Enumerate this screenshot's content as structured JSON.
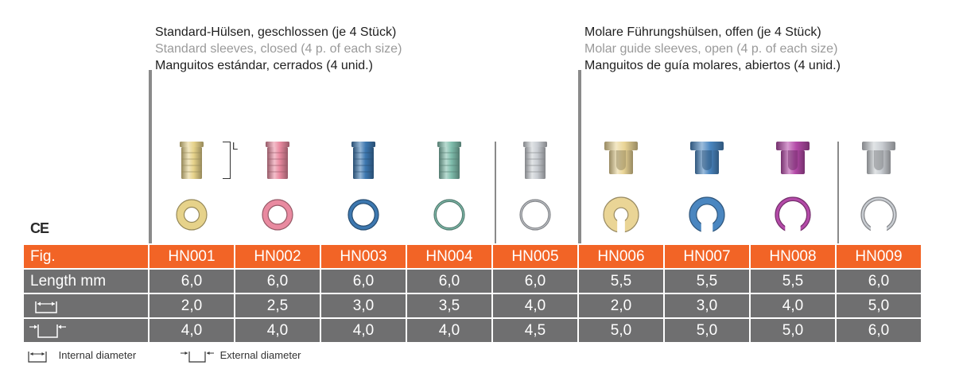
{
  "header_left": {
    "de": "Standard-Hülsen, geschlossen (je 4 Stück)",
    "en": "Standard sleeves, closed (4 p. of each size)",
    "es": "Manguitos estándar, cerrados (4 unid.)"
  },
  "header_right": {
    "de": "Molare Führungshülsen, offen (je 4 Stück)",
    "en": "Molar guide sleeves, open (4 p. of each size)",
    "es": "Manguitos de guía molares, abiertos (4 unid.)"
  },
  "ce_mark": "CE",
  "length_marker": "L",
  "table": {
    "row_labels": {
      "fig": "Fig.",
      "length": "Length mm",
      "internal": "",
      "external": ""
    },
    "columns": [
      {
        "code": "HN001",
        "length": "6,0",
        "internal": "2,0",
        "external": "4,0",
        "color": "#e6d28a",
        "type": "closed"
      },
      {
        "code": "HN002",
        "length": "6,0",
        "internal": "2,5",
        "external": "4,0",
        "color": "#e98aa0",
        "type": "closed"
      },
      {
        "code": "HN003",
        "length": "6,0",
        "internal": "3,0",
        "external": "4,0",
        "color": "#3d78b0",
        "type": "closed"
      },
      {
        "code": "HN004",
        "length": "6,0",
        "internal": "3,5",
        "external": "4,0",
        "color": "#7fbdac",
        "type": "closed"
      },
      {
        "code": "HN005",
        "length": "6,0",
        "internal": "4,0",
        "external": "4,5",
        "color": "#c9cdd2",
        "type": "closed"
      },
      {
        "code": "HN006",
        "length": "5,5",
        "internal": "2,0",
        "external": "5,0",
        "color": "#ead596",
        "type": "open"
      },
      {
        "code": "HN007",
        "length": "5,5",
        "internal": "3,0",
        "external": "5,0",
        "color": "#4a86c0",
        "type": "open"
      },
      {
        "code": "HN008",
        "length": "5,5",
        "internal": "4,0",
        "external": "5,0",
        "color": "#b44aa8",
        "type": "open"
      },
      {
        "code": "HN009",
        "length": "6,0",
        "internal": "5,0",
        "external": "6,0",
        "color": "#c9cdd2",
        "type": "open"
      }
    ]
  },
  "legend": {
    "internal": "Internal diameter",
    "external": "External diameter"
  }
}
